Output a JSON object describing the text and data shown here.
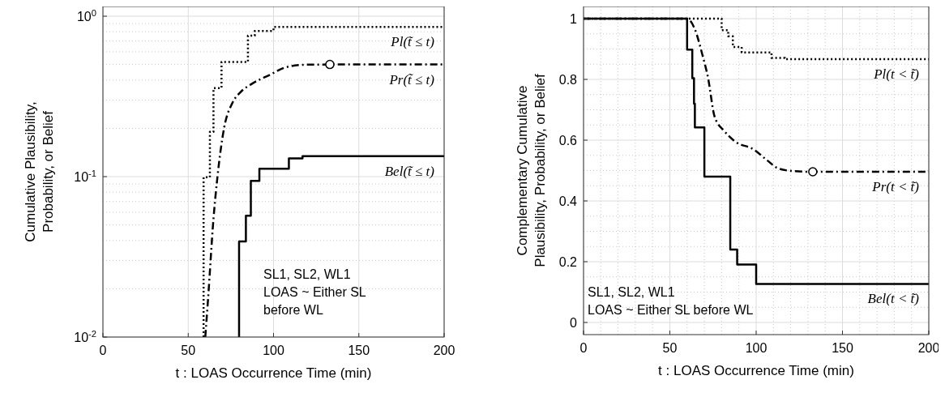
{
  "chart_data": [
    {
      "type": "step",
      "xlabel": "t : LOAS Occurrence Time (min)",
      "ylabel": "Cumulative Plausibility,\nProbability, or Belief",
      "log": "y",
      "grid": true,
      "xlim": [
        0,
        200
      ],
      "xticks": [
        0,
        50,
        100,
        150,
        200
      ],
      "ylim": [
        0.01,
        1.15
      ],
      "yticks": [
        {
          "value": 0.01,
          "label": "10$^{-2}$"
        },
        {
          "value": 0.1,
          "label": "10$^{-1}$"
        },
        {
          "value": 1,
          "label": "10$^{0}$"
        }
      ],
      "annotations": [
        "SL1, SL2, WL1",
        "LOAS ~ Either SL before WL"
      ],
      "series": [
        {
          "name": "Pl(t̃ ≤ t)",
          "line_style": "dotted",
          "color": "#000000",
          "x": [
            59,
            59,
            62.7,
            64.8,
            69.5,
            85,
            89,
            100,
            200
          ],
          "values": [
            0.01,
            0.099,
            0.19,
            0.356,
            0.518,
            0.757,
            0.81,
            0.857,
            0.857
          ]
        },
        {
          "name": "Pr(t̃ ≤ t)",
          "type": "line",
          "line_style": "dashed",
          "color": "#000000",
          "x": [
            60,
            61.6,
            64.8,
            67.1,
            71.1,
            75.9,
            80.6,
            87,
            98,
            107.6,
            120,
            133,
            200
          ],
          "values": [
            0.01,
            0.0171,
            0.0546,
            0.099,
            0.203,
            0.288,
            0.336,
            0.377,
            0.432,
            0.482,
            0.499,
            0.5,
            0.5
          ]
        },
        {
          "type": "scatter",
          "marker": "circle",
          "color": "#000000",
          "x": [
            133
          ],
          "values": [
            0.5
          ]
        },
        {
          "name": "Bel(t̃ ≤ t)",
          "line_style": "solid",
          "color": "#000000",
          "x": [
            79.8,
            79.8,
            83.8,
            86.7,
            91.7,
            109,
            117,
            200
          ],
          "values": [
            0.01,
            0.0395,
            0.057,
            0.094,
            0.112,
            0.13,
            0.134,
            0.134
          ]
        }
      ]
    },
    {
      "type": "step",
      "xlabel": "t : LOAS Occurrence Time (min)",
      "ylabel": "Complementary Cumulative\nPlausibility, Probability, or Belief",
      "grid": true,
      "xlim": [
        0,
        200
      ],
      "xticks": [
        0,
        50,
        100,
        150,
        200
      ],
      "ylim": [
        -0.04,
        1.04
      ],
      "yticks": [
        0,
        0.2,
        0.4,
        0.6,
        0.8,
        1
      ],
      "annotations": [
        "SL1, SL2, WL1",
        "LOAS ~ Either SL before WL"
      ],
      "series": [
        {
          "name": "Pl(t < t̃)",
          "line_style": "dotted",
          "color": "#000000",
          "x": [
            0,
            80,
            83.8,
            86.5,
            91.6,
            108.9,
            116.7,
            200
          ],
          "values": [
            1,
            0.962,
            0.942,
            0.907,
            0.889,
            0.871,
            0.867,
            0.867
          ]
        },
        {
          "name": "Pr(t < t̃)",
          "type": "line",
          "line_style": "dashed",
          "color": "#000000",
          "x": [
            0,
            60,
            64.2,
            68.9,
            72,
            76,
            81.4,
            87.7,
            98.7,
            106.5,
            112.8,
            122,
            132.8,
            200
          ],
          "values": [
            1,
            1,
            0.969,
            0.88,
            0.809,
            0.676,
            0.631,
            0.596,
            0.569,
            0.533,
            0.507,
            0.498,
            0.496,
            0.496
          ]
        },
        {
          "type": "scatter",
          "marker": "circle",
          "color": "#000000",
          "x": [
            132.8
          ],
          "values": [
            0.496
          ]
        },
        {
          "name": "Bel(t < t̃)",
          "line_style": "solid",
          "color": "#000000",
          "x": [
            0,
            60,
            63,
            64,
            64.5,
            70,
            85,
            89,
            100,
            200
          ],
          "values": [
            1,
            0.898,
            0.804,
            0.72,
            0.642,
            0.48,
            0.24,
            0.191,
            0.127,
            0.127
          ]
        }
      ]
    }
  ]
}
